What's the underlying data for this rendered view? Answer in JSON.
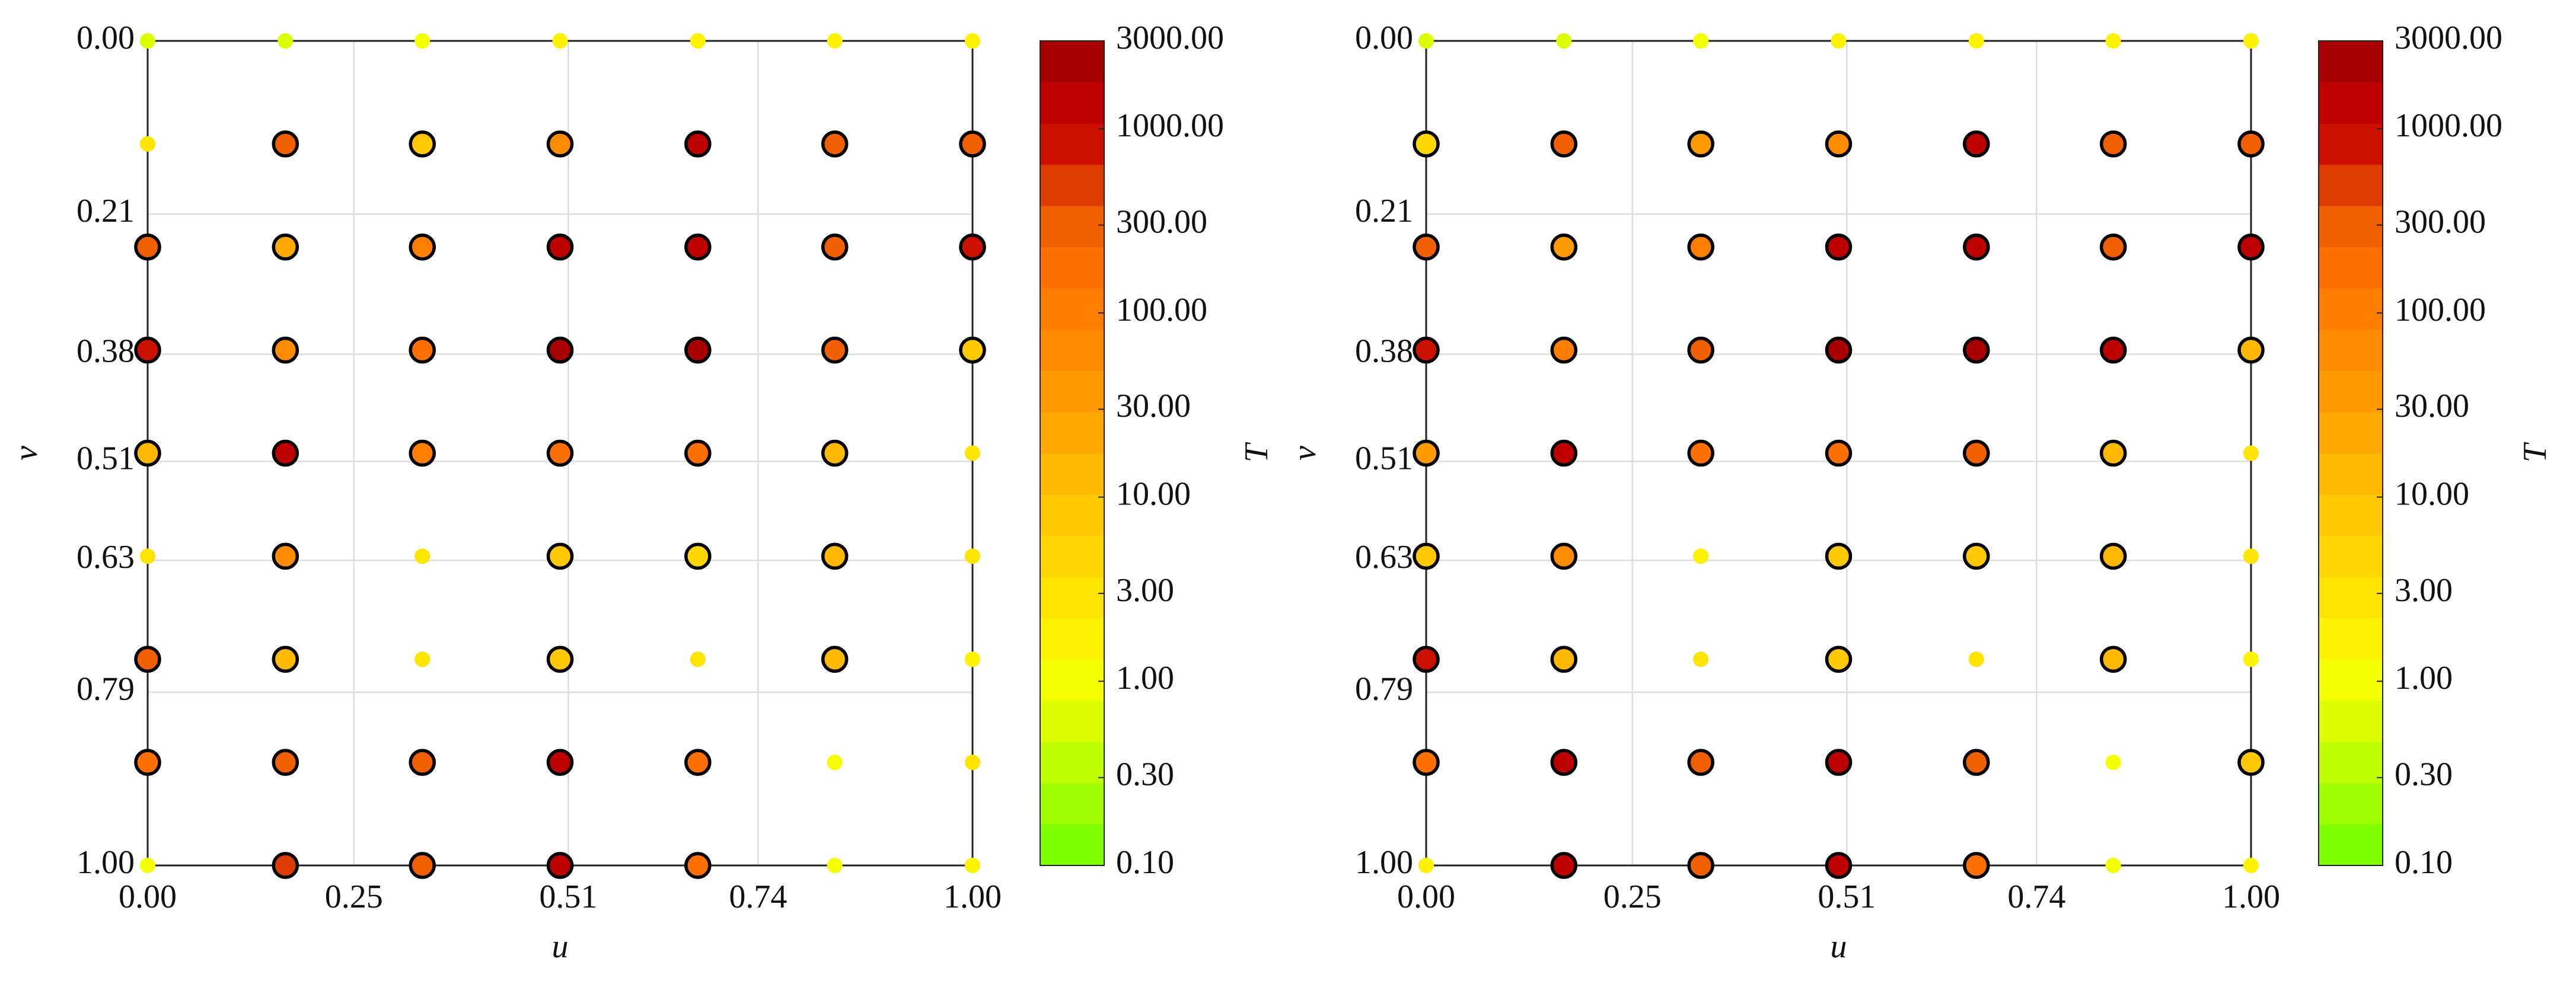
{
  "chart_data": [
    {
      "type": "scatter",
      "xlabel": "u",
      "ylabel": "v",
      "clabel": "T",
      "xlim": [
        0,
        1
      ],
      "ylim": [
        0,
        1
      ],
      "y_inverted": true,
      "grid": true,
      "xticks": [
        {
          "value": 0,
          "label": "0.00"
        },
        0.25,
        0.51,
        0.74,
        {
          "value": 1,
          "label": "1.00"
        }
      ],
      "yticks": [
        {
          "value": 0,
          "label": "0.00"
        },
        0.21,
        0.38,
        0.51,
        0.63,
        0.79,
        {
          "value": 1,
          "label": "1.00"
        }
      ],
      "clim": [
        0.1,
        3000
      ],
      "clog": true,
      "cticks": [
        {
          "value": 0.1,
          "label": "0.10"
        },
        {
          "value": 0.3,
          "label": "0.30"
        },
        {
          "value": 1,
          "label": "1.00"
        },
        {
          "value": 3,
          "label": "3.00"
        },
        {
          "value": 10,
          "label": "10.00"
        },
        {
          "value": 30,
          "label": "30.00"
        },
        {
          "value": 100,
          "label": "100.00"
        },
        {
          "value": 300,
          "label": "300.00"
        },
        {
          "value": 1000,
          "label": "1000.00"
        },
        {
          "value": 3000,
          "label": "3000.00"
        }
      ],
      "colors": [
        "#80ff00",
        "#a0ff00",
        "#c0ff00",
        "#dcff00",
        "#f4ff00",
        "#fff200",
        "#ffe400",
        "#ffd600",
        "#ffc800",
        "#ffb800",
        "#ffa800",
        "#ff9a00",
        "#ff8c00",
        "#ff7e00",
        "#ff7000",
        "#f06000",
        "#dd3c00",
        "#cc1000",
        "#bd0000",
        "#a80000"
      ],
      "x": [
        0,
        0.167,
        0.333,
        0.5,
        0.667,
        0.833,
        1,
        0,
        0.167,
        0.333,
        0.5,
        0.667,
        0.833,
        1,
        0,
        0.167,
        0.333,
        0.5,
        0.667,
        0.833,
        1,
        0,
        0.167,
        0.333,
        0.5,
        0.667,
        0.833,
        1,
        0,
        0.167,
        0.333,
        0.5,
        0.667,
        0.833,
        1,
        0,
        0.167,
        0.333,
        0.5,
        0.667,
        0.833,
        1,
        0,
        0.167,
        0.333,
        0.5,
        0.667,
        0.833,
        1,
        0,
        0.167,
        0.333,
        0.5,
        0.667,
        0.833,
        1,
        0,
        0.167,
        0.333,
        0.5,
        0.667,
        0.833,
        1
      ],
      "y": [
        0,
        0,
        0,
        0,
        0,
        0,
        0,
        0.125,
        0.125,
        0.125,
        0.125,
        0.125,
        0.125,
        0.125,
        0.25,
        0.25,
        0.25,
        0.25,
        0.25,
        0.25,
        0.25,
        0.375,
        0.375,
        0.375,
        0.375,
        0.375,
        0.375,
        0.375,
        0.5,
        0.5,
        0.5,
        0.5,
        0.5,
        0.5,
        0.5,
        0.625,
        0.625,
        0.625,
        0.625,
        0.625,
        0.625,
        0.625,
        0.75,
        0.75,
        0.75,
        0.75,
        0.75,
        0.75,
        0.75,
        0.875,
        0.875,
        0.875,
        0.875,
        0.875,
        0.875,
        0.875,
        1,
        1,
        1,
        1,
        1,
        1,
        1
      ],
      "values": [
        0.5,
        0.6,
        1,
        1.5,
        1.5,
        1.5,
        1.5,
        2.5,
        300,
        10,
        80,
        1200,
        300,
        300,
        250,
        20,
        100,
        1500,
        1500,
        300,
        1000,
        800,
        60,
        200,
        2000,
        2000,
        300,
        8,
        12,
        1200,
        100,
        150,
        200,
        15,
        2.5,
        2.5,
        60,
        2.5,
        10,
        6,
        12,
        2.5,
        350,
        15,
        2.5,
        8,
        2.5,
        15,
        2,
        150,
        300,
        250,
        1200,
        150,
        1,
        2.5,
        1,
        400,
        300,
        1500,
        150,
        1,
        1.5
      ],
      "edges": [
        false,
        false,
        false,
        false,
        false,
        false,
        false,
        false,
        true,
        true,
        true,
        true,
        true,
        true,
        true,
        true,
        true,
        true,
        true,
        true,
        true,
        true,
        true,
        true,
        true,
        true,
        true,
        true,
        true,
        true,
        true,
        true,
        true,
        true,
        false,
        false,
        true,
        false,
        true,
        true,
        true,
        false,
        true,
        true,
        false,
        true,
        false,
        true,
        false,
        true,
        true,
        true,
        true,
        true,
        false,
        false,
        false,
        true,
        true,
        true,
        true,
        false,
        false
      ]
    },
    {
      "type": "scatter",
      "xlabel": "u",
      "ylabel": "v",
      "clabel": "T",
      "xlim": [
        0,
        1
      ],
      "ylim": [
        0,
        1
      ],
      "y_inverted": true,
      "grid": true,
      "xticks": [
        {
          "value": 0,
          "label": "0.00"
        },
        0.25,
        0.51,
        0.74,
        {
          "value": 1,
          "label": "1.00"
        }
      ],
      "yticks": [
        {
          "value": 0,
          "label": "0.00"
        },
        0.21,
        0.38,
        0.51,
        0.63,
        0.79,
        {
          "value": 1,
          "label": "1.00"
        }
      ],
      "clim": [
        0.1,
        3000
      ],
      "clog": true,
      "cticks": [
        {
          "value": 0.1,
          "label": "0.10"
        },
        {
          "value": 0.3,
          "label": "0.30"
        },
        {
          "value": 1,
          "label": "1.00"
        },
        {
          "value": 3,
          "label": "3.00"
        },
        {
          "value": 10,
          "label": "10.00"
        },
        {
          "value": 30,
          "label": "30.00"
        },
        {
          "value": 100,
          "label": "100.00"
        },
        {
          "value": 300,
          "label": "300.00"
        },
        {
          "value": 1000,
          "label": "1000.00"
        },
        {
          "value": 3000,
          "label": "3000.00"
        }
      ],
      "colors": [
        "#80ff00",
        "#a0ff00",
        "#c0ff00",
        "#dcff00",
        "#f4ff00",
        "#fff200",
        "#ffe400",
        "#ffd600",
        "#ffc800",
        "#ffb800",
        "#ffa800",
        "#ff9a00",
        "#ff8c00",
        "#ff7e00",
        "#ff7000",
        "#f06000",
        "#dd3c00",
        "#cc1000",
        "#bd0000",
        "#a80000"
      ],
      "x": [
        0,
        0.167,
        0.333,
        0.5,
        0.667,
        0.833,
        1,
        0,
        0.167,
        0.333,
        0.5,
        0.667,
        0.833,
        1,
        0,
        0.167,
        0.333,
        0.5,
        0.667,
        0.833,
        1,
        0,
        0.167,
        0.333,
        0.5,
        0.667,
        0.833,
        1,
        0,
        0.167,
        0.333,
        0.5,
        0.667,
        0.833,
        1,
        0,
        0.167,
        0.333,
        0.5,
        0.667,
        0.833,
        1,
        0,
        0.167,
        0.333,
        0.5,
        0.667,
        0.833,
        1,
        0,
        0.167,
        0.333,
        0.5,
        0.667,
        0.833,
        1,
        0,
        0.167,
        0.333,
        0.5,
        0.667,
        0.833,
        1
      ],
      "y": [
        0,
        0,
        0,
        0,
        0,
        0,
        0,
        0.125,
        0.125,
        0.125,
        0.125,
        0.125,
        0.125,
        0.125,
        0.25,
        0.25,
        0.25,
        0.25,
        0.25,
        0.25,
        0.25,
        0.375,
        0.375,
        0.375,
        0.375,
        0.375,
        0.375,
        0.375,
        0.5,
        0.5,
        0.5,
        0.5,
        0.5,
        0.5,
        0.5,
        0.625,
        0.625,
        0.625,
        0.625,
        0.625,
        0.625,
        0.625,
        0.75,
        0.75,
        0.75,
        0.75,
        0.75,
        0.75,
        0.75,
        0.875,
        0.875,
        0.875,
        0.875,
        0.875,
        0.875,
        0.875,
        1,
        1,
        1,
        1,
        1,
        1,
        1
      ],
      "values": [
        0.5,
        0.6,
        1,
        1.5,
        1.5,
        1.5,
        1.5,
        6,
        350,
        30,
        80,
        1200,
        300,
        250,
        250,
        30,
        100,
        1500,
        1500,
        300,
        1500,
        1000,
        100,
        300,
        2000,
        2000,
        1200,
        12,
        30,
        1500,
        150,
        200,
        250,
        15,
        2.5,
        8,
        60,
        2,
        10,
        10,
        12,
        2.5,
        800,
        15,
        2.5,
        8,
        2.5,
        15,
        2,
        150,
        1200,
        350,
        1500,
        250,
        1,
        8,
        1.5,
        1200,
        350,
        1500,
        200,
        1,
        1.5
      ],
      "edges": [
        false,
        false,
        false,
        false,
        false,
        false,
        false,
        true,
        true,
        true,
        true,
        true,
        true,
        true,
        true,
        true,
        true,
        true,
        true,
        true,
        true,
        true,
        true,
        true,
        true,
        true,
        true,
        true,
        true,
        true,
        true,
        true,
        true,
        true,
        false,
        true,
        true,
        false,
        true,
        true,
        true,
        false,
        true,
        true,
        false,
        true,
        false,
        true,
        false,
        true,
        true,
        true,
        true,
        true,
        false,
        true,
        false,
        true,
        true,
        true,
        true,
        false,
        false
      ]
    }
  ]
}
